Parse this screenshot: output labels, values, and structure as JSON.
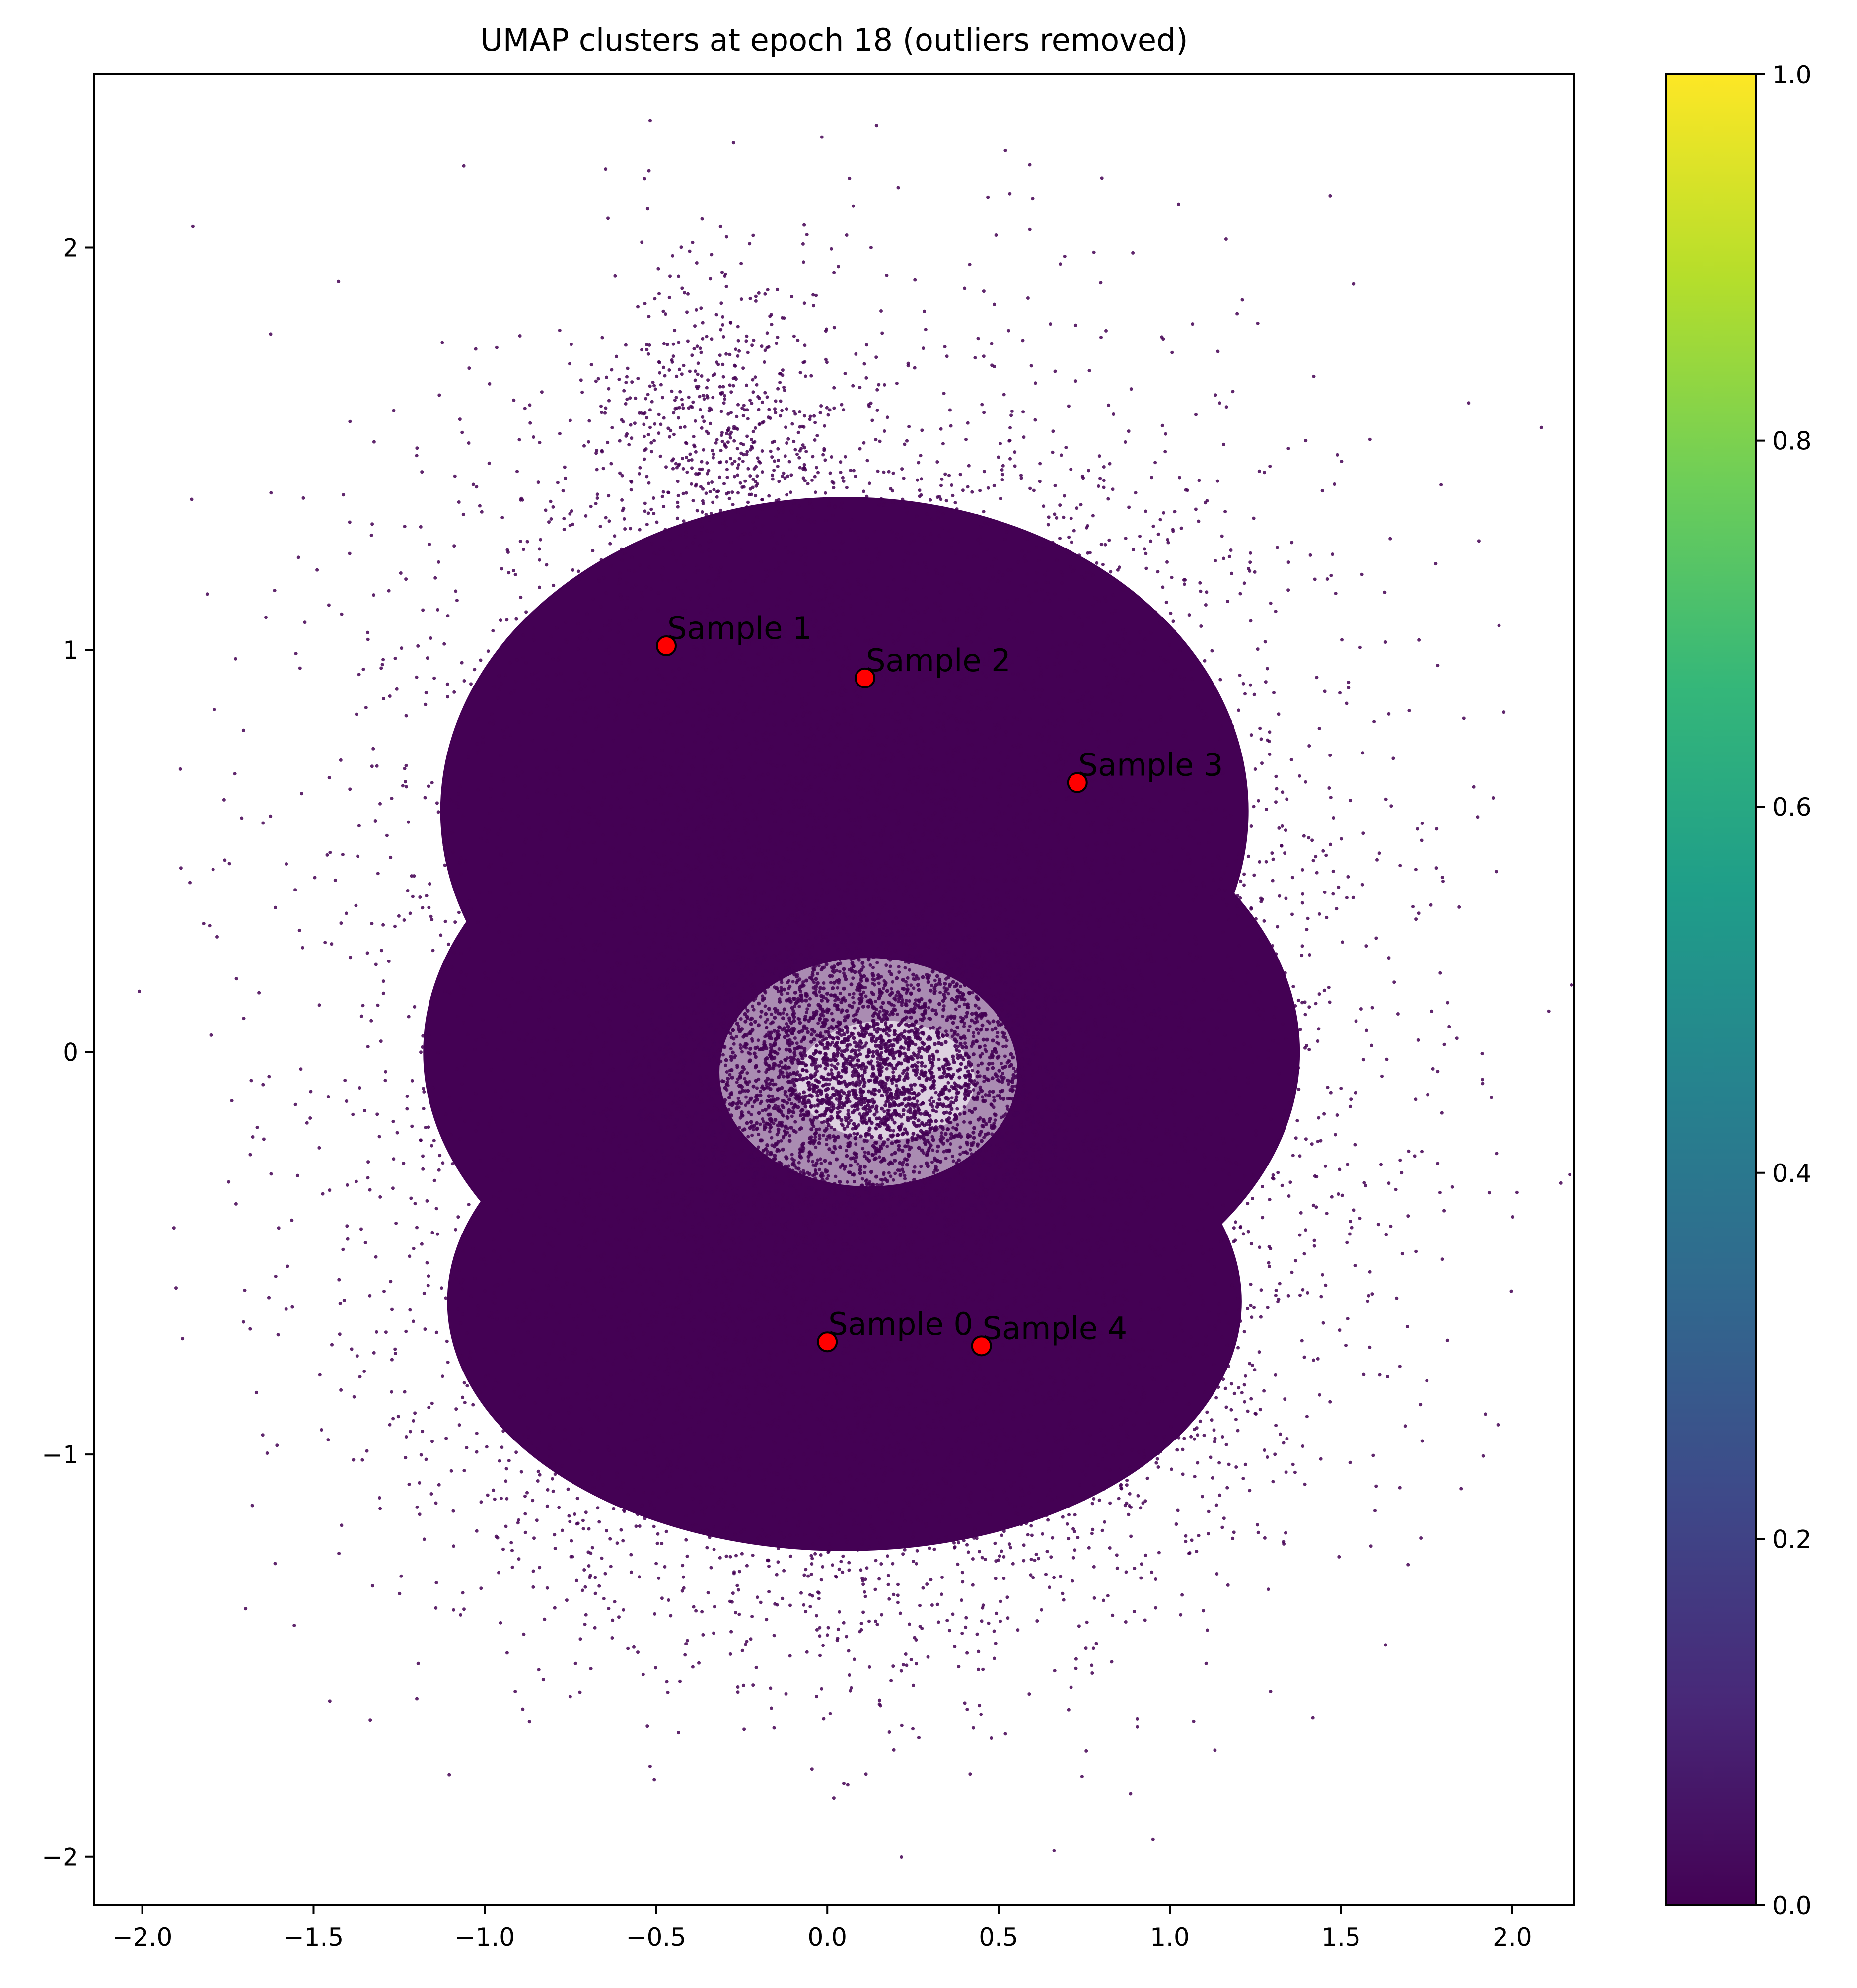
{
  "chart_data": {
    "type": "scatter",
    "title": "UMAP clusters at epoch 18 (outliers removed)",
    "xlabel": "",
    "ylabel": "",
    "xlim": [
      -2.14,
      2.18
    ],
    "ylim": [
      -2.12,
      2.43
    ],
    "grid": false,
    "x_ticks": [
      -2.0,
      -1.5,
      -1.0,
      -0.5,
      0.0,
      0.5,
      1.0,
      1.5,
      2.0
    ],
    "x_tick_labels": [
      "−2.0",
      "−1.5",
      "−1.0",
      "−0.5",
      "0.0",
      "0.5",
      "1.0",
      "1.5",
      "2.0"
    ],
    "y_ticks": [
      2,
      1,
      0,
      -1,
      -2
    ],
    "y_tick_labels": [
      "2",
      "1",
      "0",
      "−1",
      "−2"
    ],
    "point_color": "#440154",
    "point_alpha": 0.85,
    "cloud": {
      "description_shape": "dense two-lobed blob with a sparse inner hole",
      "upper_lobe_center": [
        0.05,
        0.55
      ],
      "lower_lobe_center": [
        0.05,
        -0.6
      ],
      "hole_center": [
        0.12,
        -0.05
      ]
    },
    "samples": [
      {
        "label": "Sample 0",
        "x": 0.0,
        "y": -0.72
      },
      {
        "label": "Sample 1",
        "x": -0.47,
        "y": 1.01
      },
      {
        "label": "Sample 2",
        "x": 0.11,
        "y": 0.93
      },
      {
        "label": "Sample 3",
        "x": 0.73,
        "y": 0.67
      },
      {
        "label": "Sample 4",
        "x": 0.45,
        "y": -0.73
      }
    ],
    "sample_marker_color": "#ff0000",
    "sample_marker_edge": "#000000",
    "colorbar": {
      "colormap": "viridis",
      "range": [
        0.0,
        1.0
      ],
      "ticks": [
        0.0,
        0.2,
        0.4,
        0.6,
        0.8,
        1.0
      ],
      "tick_labels": [
        "0.0",
        "0.2",
        "0.4",
        "0.6",
        "0.8",
        "1.0"
      ],
      "stops": [
        "#440154",
        "#482878",
        "#3e4989",
        "#31688e",
        "#26828e",
        "#1f9e89",
        "#35b779",
        "#6ece58",
        "#b5de2b",
        "#fde725"
      ]
    }
  }
}
